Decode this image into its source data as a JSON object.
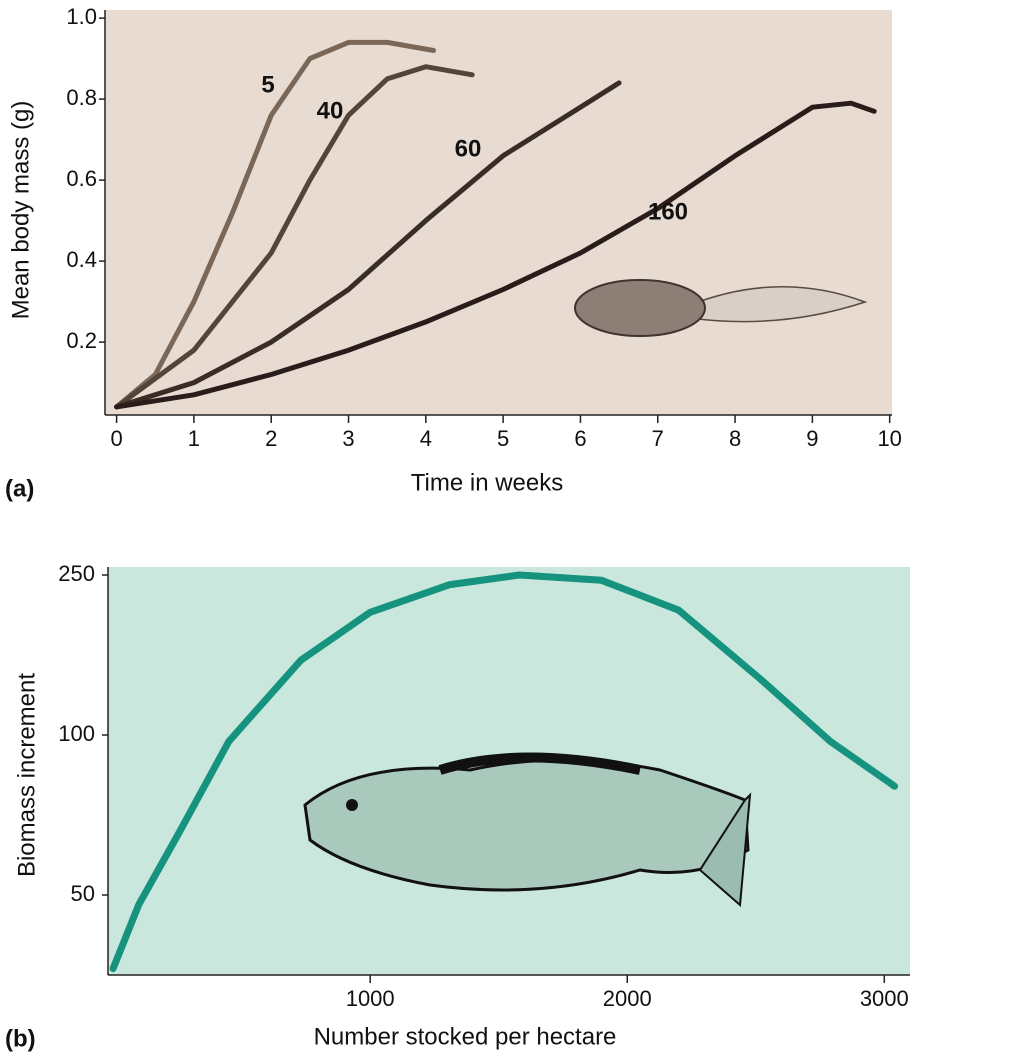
{
  "chart_data": [
    {
      "type": "line",
      "panel_label": "(a)",
      "x_label": "Time in weeks",
      "y_label": "Mean body mass (g)",
      "xlim": [
        -0.15,
        10.03
      ],
      "xticks": [
        0,
        1,
        2,
        3,
        4,
        5,
        6,
        7,
        8,
        9,
        10
      ],
      "ylim": [
        0.02,
        1.02
      ],
      "yticks": [
        0.2,
        0.4,
        0.6,
        0.8,
        {
          "value": 1,
          "label": "1.0"
        }
      ],
      "background": "#e8dcd2",
      "series": [
        {
          "name": "5",
          "color": "#7b6757",
          "x": [
            0,
            0.5,
            1,
            1.5,
            2,
            2.5,
            3,
            3.5,
            4.1
          ],
          "values": [
            0.04,
            0.12,
            0.3,
            0.52,
            0.76,
            0.9,
            0.94,
            0.94,
            0.92
          ]
        },
        {
          "name": "40",
          "color": "#54443a",
          "x": [
            0,
            1,
            2,
            2.5,
            3,
            3.5,
            4,
            4.6
          ],
          "values": [
            0.04,
            0.18,
            0.42,
            0.6,
            0.76,
            0.85,
            0.88,
            0.86
          ]
        },
        {
          "name": "60",
          "color": "#3a2d27",
          "x": [
            0,
            1,
            2,
            3,
            4,
            5,
            6,
            6.5
          ],
          "values": [
            0.04,
            0.1,
            0.2,
            0.33,
            0.5,
            0.66,
            0.78,
            0.84
          ]
        },
        {
          "name": "160",
          "color": "#2a1c1a",
          "x": [
            0,
            1,
            2,
            3,
            4,
            5,
            6,
            7,
            8,
            9,
            9.5,
            9.8
          ],
          "values": [
            0.04,
            0.07,
            0.12,
            0.18,
            0.25,
            0.33,
            0.42,
            0.53,
            0.66,
            0.78,
            0.79,
            0.77
          ]
        }
      ]
    },
    {
      "type": "line",
      "panel_label": "(b)",
      "x_label": "Number stocked per hectare",
      "y_label": "Biomass increment",
      "xlim": [
        -20,
        3100
      ],
      "xticks": [
        1000,
        2000,
        3000
      ],
      "ylim": [
        25,
        257.5
      ],
      "yticks": [
        50,
        100,
        250
      ],
      "background": "#c9e7dc",
      "color": "#15937e",
      "x": [
        0,
        100,
        260,
        450,
        730,
        1000,
        1310,
        1580,
        1900,
        2200,
        2520,
        2790,
        3040
      ],
      "values": [
        27,
        47,
        70,
        98,
        170,
        215,
        241,
        250,
        245,
        217,
        152,
        98,
        84
      ]
    }
  ]
}
